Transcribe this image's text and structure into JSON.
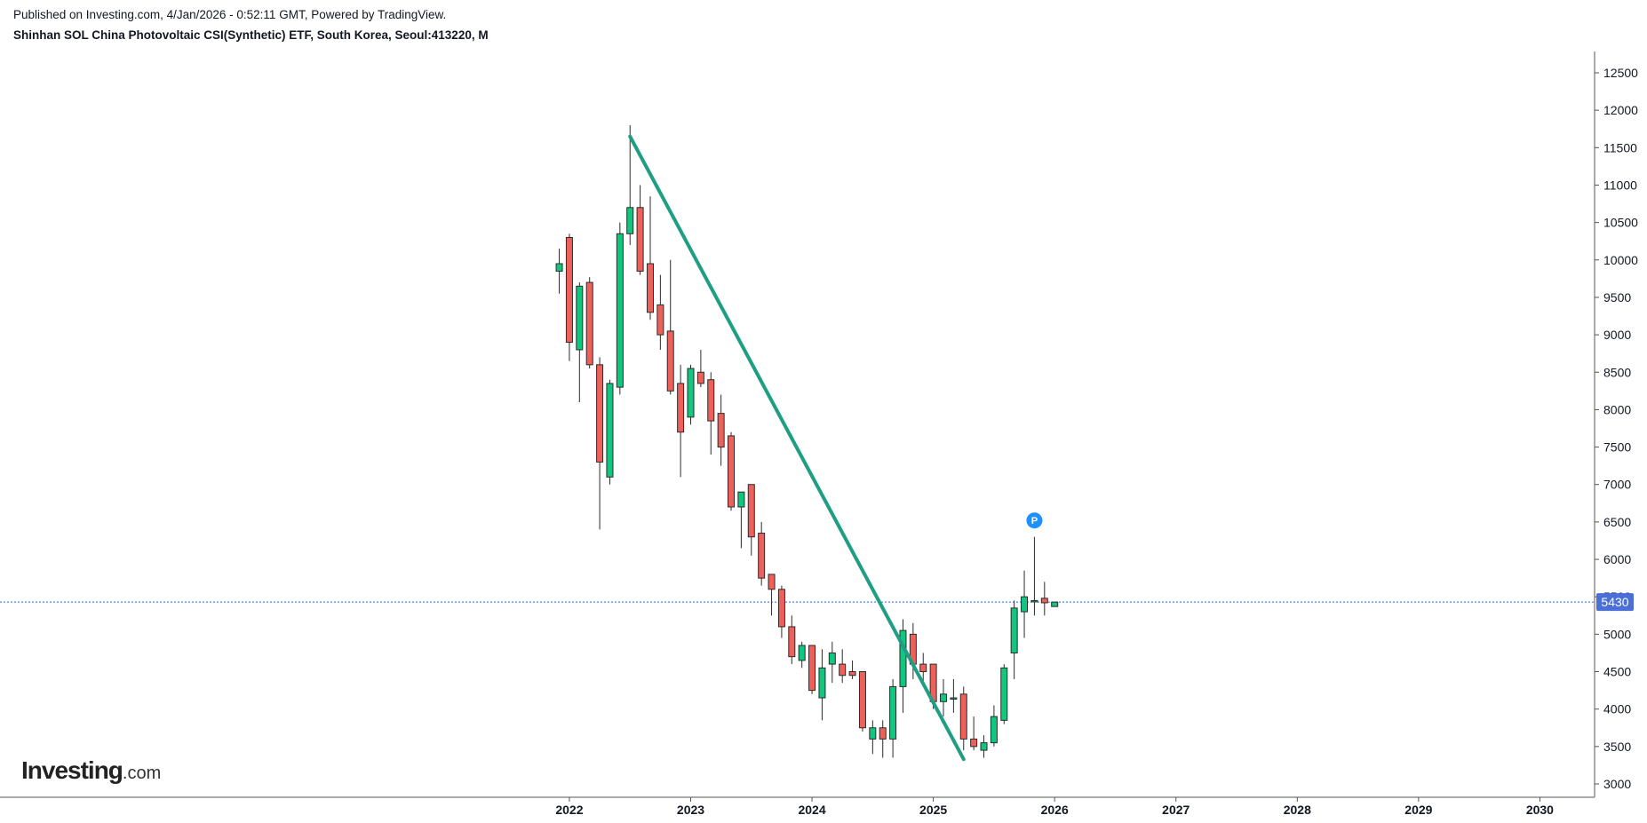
{
  "header": {
    "published": "Published on Investing.com, 4/Jan/2026 - 0:52:11 GMT, Powered by TradingView.",
    "symbol": "Shinhan SOL China Photovoltaic CSI(Synthetic) ETF, South Korea, Seoul:413220, M"
  },
  "logo": {
    "main": "Investing",
    "sub": ".com"
  },
  "colors": {
    "up": "#10c77f",
    "down": "#f0605a",
    "trendline": "#1e9e82",
    "price_line": "#2962ff",
    "price_badge": "#4a6fd8",
    "p_marker": "#1e90ff"
  },
  "chart_data": {
    "type": "candlestick",
    "interval": "M",
    "ylim": [
      2950,
      12700
    ],
    "y_ticks": [
      3000,
      3500,
      4000,
      4500,
      5000,
      5500,
      6000,
      6500,
      7000,
      7500,
      8000,
      8500,
      9000,
      9500,
      10000,
      10500,
      11000,
      11500,
      12000,
      12500
    ],
    "x_ticks": [
      "2022",
      "2023",
      "2024",
      "2025",
      "2026",
      "2027",
      "2028",
      "2029",
      "2030"
    ],
    "x_tick_months": [
      13,
      25,
      37,
      49,
      61,
      73,
      85,
      97,
      109
    ],
    "current_price": 5430,
    "last_price_label": "5430",
    "marker_label": "P",
    "marker": {
      "month": 59,
      "price": 6520
    },
    "trendline": {
      "start": {
        "month": 19,
        "price": 11650
      },
      "end": {
        "month": 52,
        "price": 3330
      }
    },
    "candles": [
      {
        "date": "2021-12",
        "o": 9850,
        "h": 10150,
        "l": 9550,
        "c": 9950
      },
      {
        "date": "2022-01",
        "o": 10300,
        "h": 10350,
        "l": 8650,
        "c": 8900
      },
      {
        "date": "2022-02",
        "o": 8800,
        "h": 9700,
        "l": 8100,
        "c": 9650
      },
      {
        "date": "2022-03",
        "o": 9700,
        "h": 9770,
        "l": 8550,
        "c": 8600
      },
      {
        "date": "2022-04",
        "o": 8600,
        "h": 8700,
        "l": 6400,
        "c": 7300
      },
      {
        "date": "2022-05",
        "o": 7100,
        "h": 8400,
        "l": 7000,
        "c": 8350
      },
      {
        "date": "2022-06",
        "o": 8300,
        "h": 10500,
        "l": 8200,
        "c": 10350
      },
      {
        "date": "2022-07",
        "o": 10350,
        "h": 11800,
        "l": 10200,
        "c": 10700
      },
      {
        "date": "2022-08",
        "o": 10700,
        "h": 11000,
        "l": 9800,
        "c": 9850
      },
      {
        "date": "2022-09",
        "o": 9950,
        "h": 10850,
        "l": 9200,
        "c": 9300
      },
      {
        "date": "2022-10",
        "o": 9400,
        "h": 9800,
        "l": 8800,
        "c": 9000
      },
      {
        "date": "2022-11",
        "o": 9050,
        "h": 10000,
        "l": 8200,
        "c": 8250
      },
      {
        "date": "2022-12",
        "o": 8350,
        "h": 8600,
        "l": 7100,
        "c": 7700
      },
      {
        "date": "2023-01",
        "o": 7900,
        "h": 8600,
        "l": 7800,
        "c": 8550
      },
      {
        "date": "2023-02",
        "o": 8500,
        "h": 8800,
        "l": 8300,
        "c": 8350
      },
      {
        "date": "2023-03",
        "o": 8400,
        "h": 8500,
        "l": 7400,
        "c": 7850
      },
      {
        "date": "2023-04",
        "o": 7950,
        "h": 8200,
        "l": 7250,
        "c": 7500
      },
      {
        "date": "2023-05",
        "o": 7650,
        "h": 7700,
        "l": 6650,
        "c": 6700
      },
      {
        "date": "2023-06",
        "o": 6700,
        "h": 6900,
        "l": 6150,
        "c": 6900
      },
      {
        "date": "2023-07",
        "o": 7000,
        "h": 7000,
        "l": 6050,
        "c": 6300
      },
      {
        "date": "2023-08",
        "o": 6350,
        "h": 6500,
        "l": 5650,
        "c": 5750
      },
      {
        "date": "2023-09",
        "o": 5800,
        "h": 5800,
        "l": 5250,
        "c": 5600
      },
      {
        "date": "2023-10",
        "o": 5600,
        "h": 5650,
        "l": 4950,
        "c": 5100
      },
      {
        "date": "2023-11",
        "o": 5100,
        "h": 5250,
        "l": 4600,
        "c": 4700
      },
      {
        "date": "2023-12",
        "o": 4650,
        "h": 4900,
        "l": 4550,
        "c": 4850
      },
      {
        "date": "2024-01",
        "o": 4850,
        "h": 4850,
        "l": 4200,
        "c": 4250
      },
      {
        "date": "2024-02",
        "o": 4150,
        "h": 4800,
        "l": 3850,
        "c": 4550
      },
      {
        "date": "2024-03",
        "o": 4600,
        "h": 4900,
        "l": 4350,
        "c": 4750
      },
      {
        "date": "2024-04",
        "o": 4600,
        "h": 4800,
        "l": 4350,
        "c": 4450
      },
      {
        "date": "2024-05",
        "o": 4500,
        "h": 4650,
        "l": 4400,
        "c": 4450
      },
      {
        "date": "2024-06",
        "o": 4500,
        "h": 4500,
        "l": 3700,
        "c": 3750
      },
      {
        "date": "2024-07",
        "o": 3600,
        "h": 3850,
        "l": 3400,
        "c": 3750
      },
      {
        "date": "2024-08",
        "o": 3750,
        "h": 3850,
        "l": 3350,
        "c": 3600
      },
      {
        "date": "2024-09",
        "o": 3600,
        "h": 4400,
        "l": 3350,
        "c": 4300
      },
      {
        "date": "2024-10",
        "o": 4300,
        "h": 5200,
        "l": 3950,
        "c": 5050
      },
      {
        "date": "2024-11",
        "o": 5000,
        "h": 5150,
        "l": 4400,
        "c": 4600
      },
      {
        "date": "2024-12",
        "o": 4600,
        "h": 4750,
        "l": 4350,
        "c": 4500
      },
      {
        "date": "2025-01",
        "o": 4600,
        "h": 4600,
        "l": 4000,
        "c": 4100
      },
      {
        "date": "2025-02",
        "o": 4100,
        "h": 4400,
        "l": 3900,
        "c": 4200
      },
      {
        "date": "2025-03",
        "o": 4150,
        "h": 4400,
        "l": 3950,
        "c": 4150
      },
      {
        "date": "2025-04",
        "o": 4200,
        "h": 4300,
        "l": 3450,
        "c": 3600
      },
      {
        "date": "2025-05",
        "o": 3600,
        "h": 3900,
        "l": 3450,
        "c": 3500
      },
      {
        "date": "2025-06",
        "o": 3450,
        "h": 3650,
        "l": 3350,
        "c": 3550
      },
      {
        "date": "2025-07",
        "o": 3550,
        "h": 4050,
        "l": 3500,
        "c": 3900
      },
      {
        "date": "2025-08",
        "o": 3850,
        "h": 4600,
        "l": 3800,
        "c": 4550
      },
      {
        "date": "2025-09",
        "o": 4750,
        "h": 5450,
        "l": 4400,
        "c": 5350
      },
      {
        "date": "2025-10",
        "o": 5300,
        "h": 5850,
        "l": 4950,
        "c": 5500
      },
      {
        "date": "2025-11",
        "o": 5450,
        "h": 6300,
        "l": 5250,
        "c": 5450
      },
      {
        "date": "2025-12",
        "o": 5480,
        "h": 5700,
        "l": 5250,
        "c": 5420
      },
      {
        "date": "2026-01",
        "o": 5370,
        "h": 5430,
        "l": 5370,
        "c": 5430
      }
    ]
  }
}
